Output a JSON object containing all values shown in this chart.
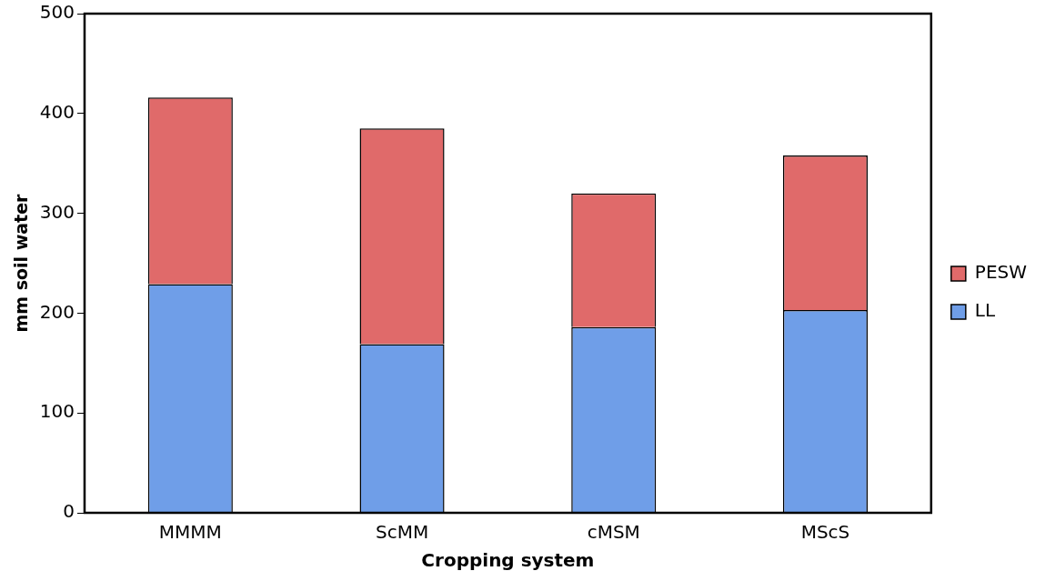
{
  "chart_data": {
    "type": "bar",
    "stacked": true,
    "xlabel": "Cropping system",
    "ylabel": "mm soil water",
    "categories": [
      "MMMM",
      "ScMM",
      "cMSM",
      "MScS"
    ],
    "series": [
      {
        "name": "LL",
        "color": "#6f9ee8",
        "values": [
          229,
          169,
          186,
          203
        ]
      },
      {
        "name": "PESW",
        "color": "#e06a6a",
        "values": [
          187,
          216,
          134,
          155
        ]
      }
    ],
    "ylim": [
      0,
      500
    ],
    "yticks": [
      0,
      100,
      200,
      300,
      400,
      500
    ],
    "grid": false,
    "legend": "right"
  }
}
